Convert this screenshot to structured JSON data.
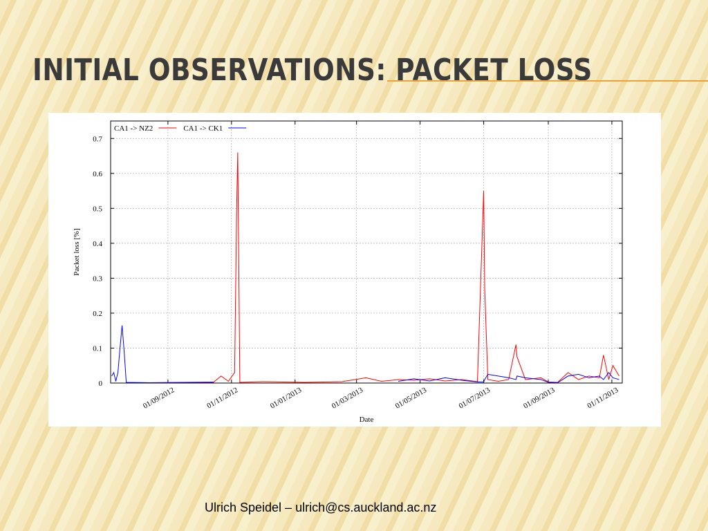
{
  "title": "INITIAL OBSERVATIONS: PACKET LOSS",
  "footer": "Ulrich Speidel – ulrich@cs.auckland.ac.nz",
  "chart_data": {
    "type": "line",
    "ylabel": "Packet loss [%]",
    "xlabel": "Date",
    "x": [
      "2012-07-09",
      "2012-07-11",
      "2012-07-13",
      "2012-07-15",
      "2012-07-17",
      "2012-07-19",
      "2012-07-21",
      "2012-07-23",
      "2012-08-15",
      "2012-10-15",
      "2012-10-22",
      "2012-10-29",
      "2012-11-04",
      "2012-11-06",
      "2012-11-07",
      "2012-11-09",
      "2012-12-01",
      "2013-01-10",
      "2013-02-15",
      "2013-03-10",
      "2013-03-25",
      "2013-04-10",
      "2013-04-25",
      "2013-05-10",
      "2013-05-25",
      "2013-06-10",
      "2013-06-25",
      "2013-07-01",
      "2013-07-02",
      "2013-07-05",
      "2013-07-15",
      "2013-07-25",
      "2013-08-01",
      "2013-08-02",
      "2013-08-10",
      "2013-08-25",
      "2013-09-01",
      "2013-09-10",
      "2013-09-20",
      "2013-09-30",
      "2013-10-10",
      "2013-10-20",
      "2013-10-24",
      "2013-10-29",
      "2013-11-02",
      "2013-11-08"
    ],
    "series": [
      {
        "name": "CA1 -> NZ2",
        "color": "#ff0000",
        "values": [
          null,
          null,
          null,
          null,
          null,
          null,
          null,
          null,
          0.001,
          0.003,
          0.02,
          0.005,
          0.03,
          0.51,
          0.66,
          0.002,
          0.004,
          0.002,
          0.004,
          0.015,
          0.005,
          0.01,
          0.008,
          0.012,
          0.006,
          0.01,
          0.004,
          0.55,
          0.27,
          0.01,
          0.005,
          0.01,
          0.11,
          0.075,
          0.01,
          0.015,
          0.003,
          0.002,
          0.03,
          0.01,
          0.02,
          0.015,
          0.08,
          0.01,
          0.05,
          0.02
        ]
      },
      {
        "name": "CA1 -> CK1",
        "color": "#0000ff",
        "values": [
          0.02,
          0.03,
          0.005,
          0.03,
          0.1,
          0.165,
          0.09,
          0.002,
          0.001,
          0.002,
          null,
          null,
          null,
          null,
          null,
          null,
          0.002,
          null,
          null,
          null,
          null,
          0.005,
          0.012,
          0.006,
          0.015,
          0.008,
          0.003,
          0.003,
          0.01,
          0.025,
          0.02,
          0.015,
          0.01,
          0.02,
          0.015,
          0.01,
          0.002,
          0.001,
          0.02,
          0.025,
          0.015,
          0.02,
          0.01,
          0.03,
          0.015,
          0.01
        ]
      }
    ],
    "xlim": [
      "2012-07-08",
      "2013-11-11"
    ],
    "xticks": [
      {
        "value": "2012-09-01",
        "label": "01/09/2012"
      },
      {
        "value": "2012-11-01",
        "label": "01/11/2012"
      },
      {
        "value": "2013-01-01",
        "label": "01/01/2013"
      },
      {
        "value": "2013-03-01",
        "label": "01/03/2013"
      },
      {
        "value": "2013-05-01",
        "label": "01/05/2013"
      },
      {
        "value": "2013-07-01",
        "label": "01/07/2013"
      },
      {
        "value": "2013-09-01",
        "label": "01/09/2013"
      },
      {
        "value": "2013-11-01",
        "label": "01/11/2013"
      }
    ],
    "ylim": [
      0,
      0.75
    ],
    "yticks": [
      0,
      0.1,
      0.2,
      0.3,
      0.4,
      0.5,
      0.6,
      0.7
    ],
    "grid": true,
    "legend": "top-left"
  }
}
